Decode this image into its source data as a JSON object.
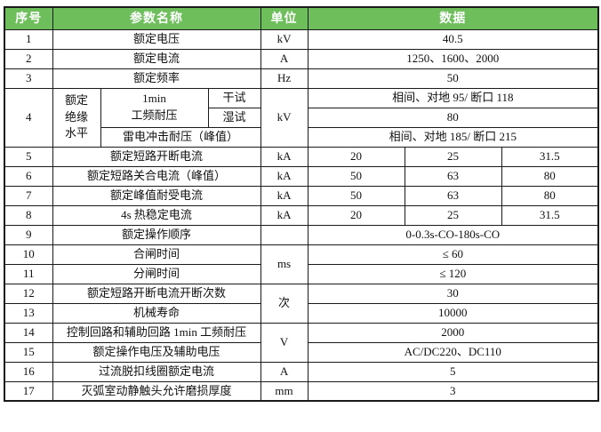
{
  "colors": {
    "header_bg": "#6EBE5C",
    "header_text": "#FFFFFF",
    "border": "#1A1A1A",
    "text": "#111111",
    "background": "#FFFFFF"
  },
  "table": {
    "header": {
      "serial": "序号",
      "param": "参数名称",
      "unit": "单位",
      "data_col": "数据"
    },
    "r1": {
      "no": "1",
      "param": "额定电压",
      "unit": "kV",
      "data": "40.5"
    },
    "r2": {
      "no": "2",
      "param": "额定电流",
      "unit": "A",
      "data": "1250、1600、2000"
    },
    "r3": {
      "no": "3",
      "param": "额定频率",
      "unit": "Hz",
      "data": "50"
    },
    "r4": {
      "no": "4",
      "group": {
        "l1": "额定",
        "l2": "绝缘",
        "l3": "水平"
      },
      "freq_test": {
        "l1": "1min",
        "l2": "工频耐压"
      },
      "dry": "干试",
      "wet": "湿试",
      "lightning": "雷电冲击耐压（峰值）",
      "unit": "kV",
      "data_dry": "相间、对地 95/ 断口 118",
      "data_wet": "80",
      "data_lightning": "相间、对地 185/ 断口 215"
    },
    "r5": {
      "no": "5",
      "param": "额定短路开断电流",
      "unit": "kA",
      "d1": "20",
      "d2": "25",
      "d3": "31.5"
    },
    "r6": {
      "no": "6",
      "param": "额定短路关合电流（峰值）",
      "unit": "kA",
      "d1": "50",
      "d2": "63",
      "d3": "80"
    },
    "r7": {
      "no": "7",
      "param": "额定峰值耐受电流",
      "unit": "kA",
      "d1": "50",
      "d2": "63",
      "d3": "80"
    },
    "r8": {
      "no": "8",
      "param": "4s 热稳定电流",
      "unit": "kA",
      "d1": "20",
      "d2": "25",
      "d3": "31.5"
    },
    "r9": {
      "no": "9",
      "param": "额定操作顺序",
      "unit": "",
      "data": "0-0.3s-CO-180s-CO"
    },
    "unit_ms": "ms",
    "r10": {
      "no": "10",
      "param": "合闸时间",
      "data": "≤ 60"
    },
    "r11": {
      "no": "11",
      "param": "分闸时间",
      "data": "≤ 120"
    },
    "unit_times": "次",
    "r12": {
      "no": "12",
      "param": "额定短路开断电流开断次数",
      "data": "30"
    },
    "r13": {
      "no": "13",
      "param": "机械寿命",
      "data": "10000"
    },
    "unit_v": "V",
    "r14": {
      "no": "14",
      "param": "控制回路和辅助回路 1min 工频耐压",
      "data": "2000"
    },
    "r15": {
      "no": "15",
      "param": "额定操作电压及辅助电压",
      "data": "AC/DC220、DC110"
    },
    "r16": {
      "no": "16",
      "param": "过流脱扣线圈额定电流",
      "unit": "A",
      "data": "5"
    },
    "r17": {
      "no": "17",
      "param": "灭弧室动静触头允许磨损厚度",
      "unit": "mm",
      "data": "3"
    }
  }
}
